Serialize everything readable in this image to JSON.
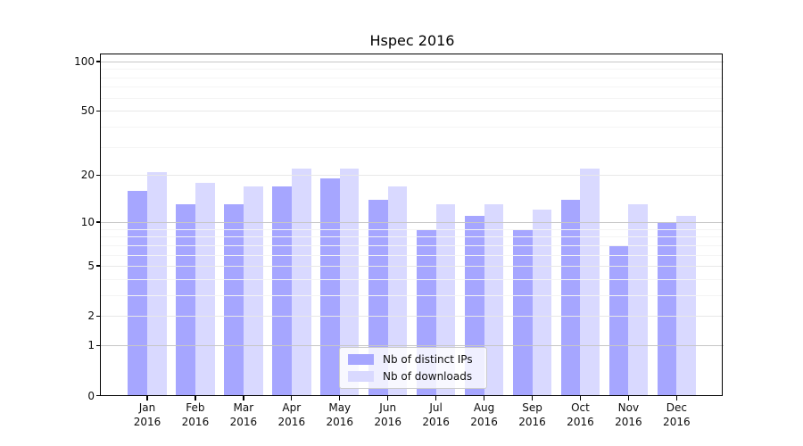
{
  "title": "Hspec 2016",
  "chart_data": {
    "type": "bar",
    "title": "Hspec 2016",
    "categories": [
      "Jan 2016",
      "Feb 2016",
      "Mar 2016",
      "Apr 2016",
      "May 2016",
      "Jun 2016",
      "Jul 2016",
      "Aug 2016",
      "Sep 2016",
      "Oct 2016",
      "Nov 2016",
      "Dec 2016"
    ],
    "month_labels": [
      "Jan",
      "Feb",
      "Mar",
      "Apr",
      "May",
      "Jun",
      "Jul",
      "Aug",
      "Sep",
      "Oct",
      "Nov",
      "Dec"
    ],
    "year_label": "2016",
    "series": [
      {
        "name": "Nb of distinct IPs",
        "color": "#a6a6ff",
        "values": [
          16,
          13,
          13,
          17,
          19,
          14,
          9,
          11,
          9,
          14,
          7,
          10
        ]
      },
      {
        "name": "Nb of downloads",
        "color": "#d9d9ff",
        "values": [
          21,
          18,
          17,
          22,
          22,
          17,
          13,
          13,
          12,
          22,
          13,
          11
        ]
      }
    ],
    "xlabel": "",
    "ylabel": "",
    "y_scale": "log1p",
    "ylim": [
      0,
      111
    ],
    "y_major_ticks": [
      0,
      1,
      2,
      5,
      10,
      20,
      50,
      100
    ],
    "y_minor_gridlines": [
      3,
      4,
      6,
      7,
      8,
      9,
      30,
      40,
      60,
      70,
      80,
      90
    ],
    "grid": true,
    "legend_position": "lower center",
    "colors": {
      "grid_major": "#e8e8e8",
      "grid_power10": "#c7c7c7",
      "grid_minor": "#f4f4f4",
      "spine": "#000000",
      "text": "#0d0d0d"
    }
  }
}
